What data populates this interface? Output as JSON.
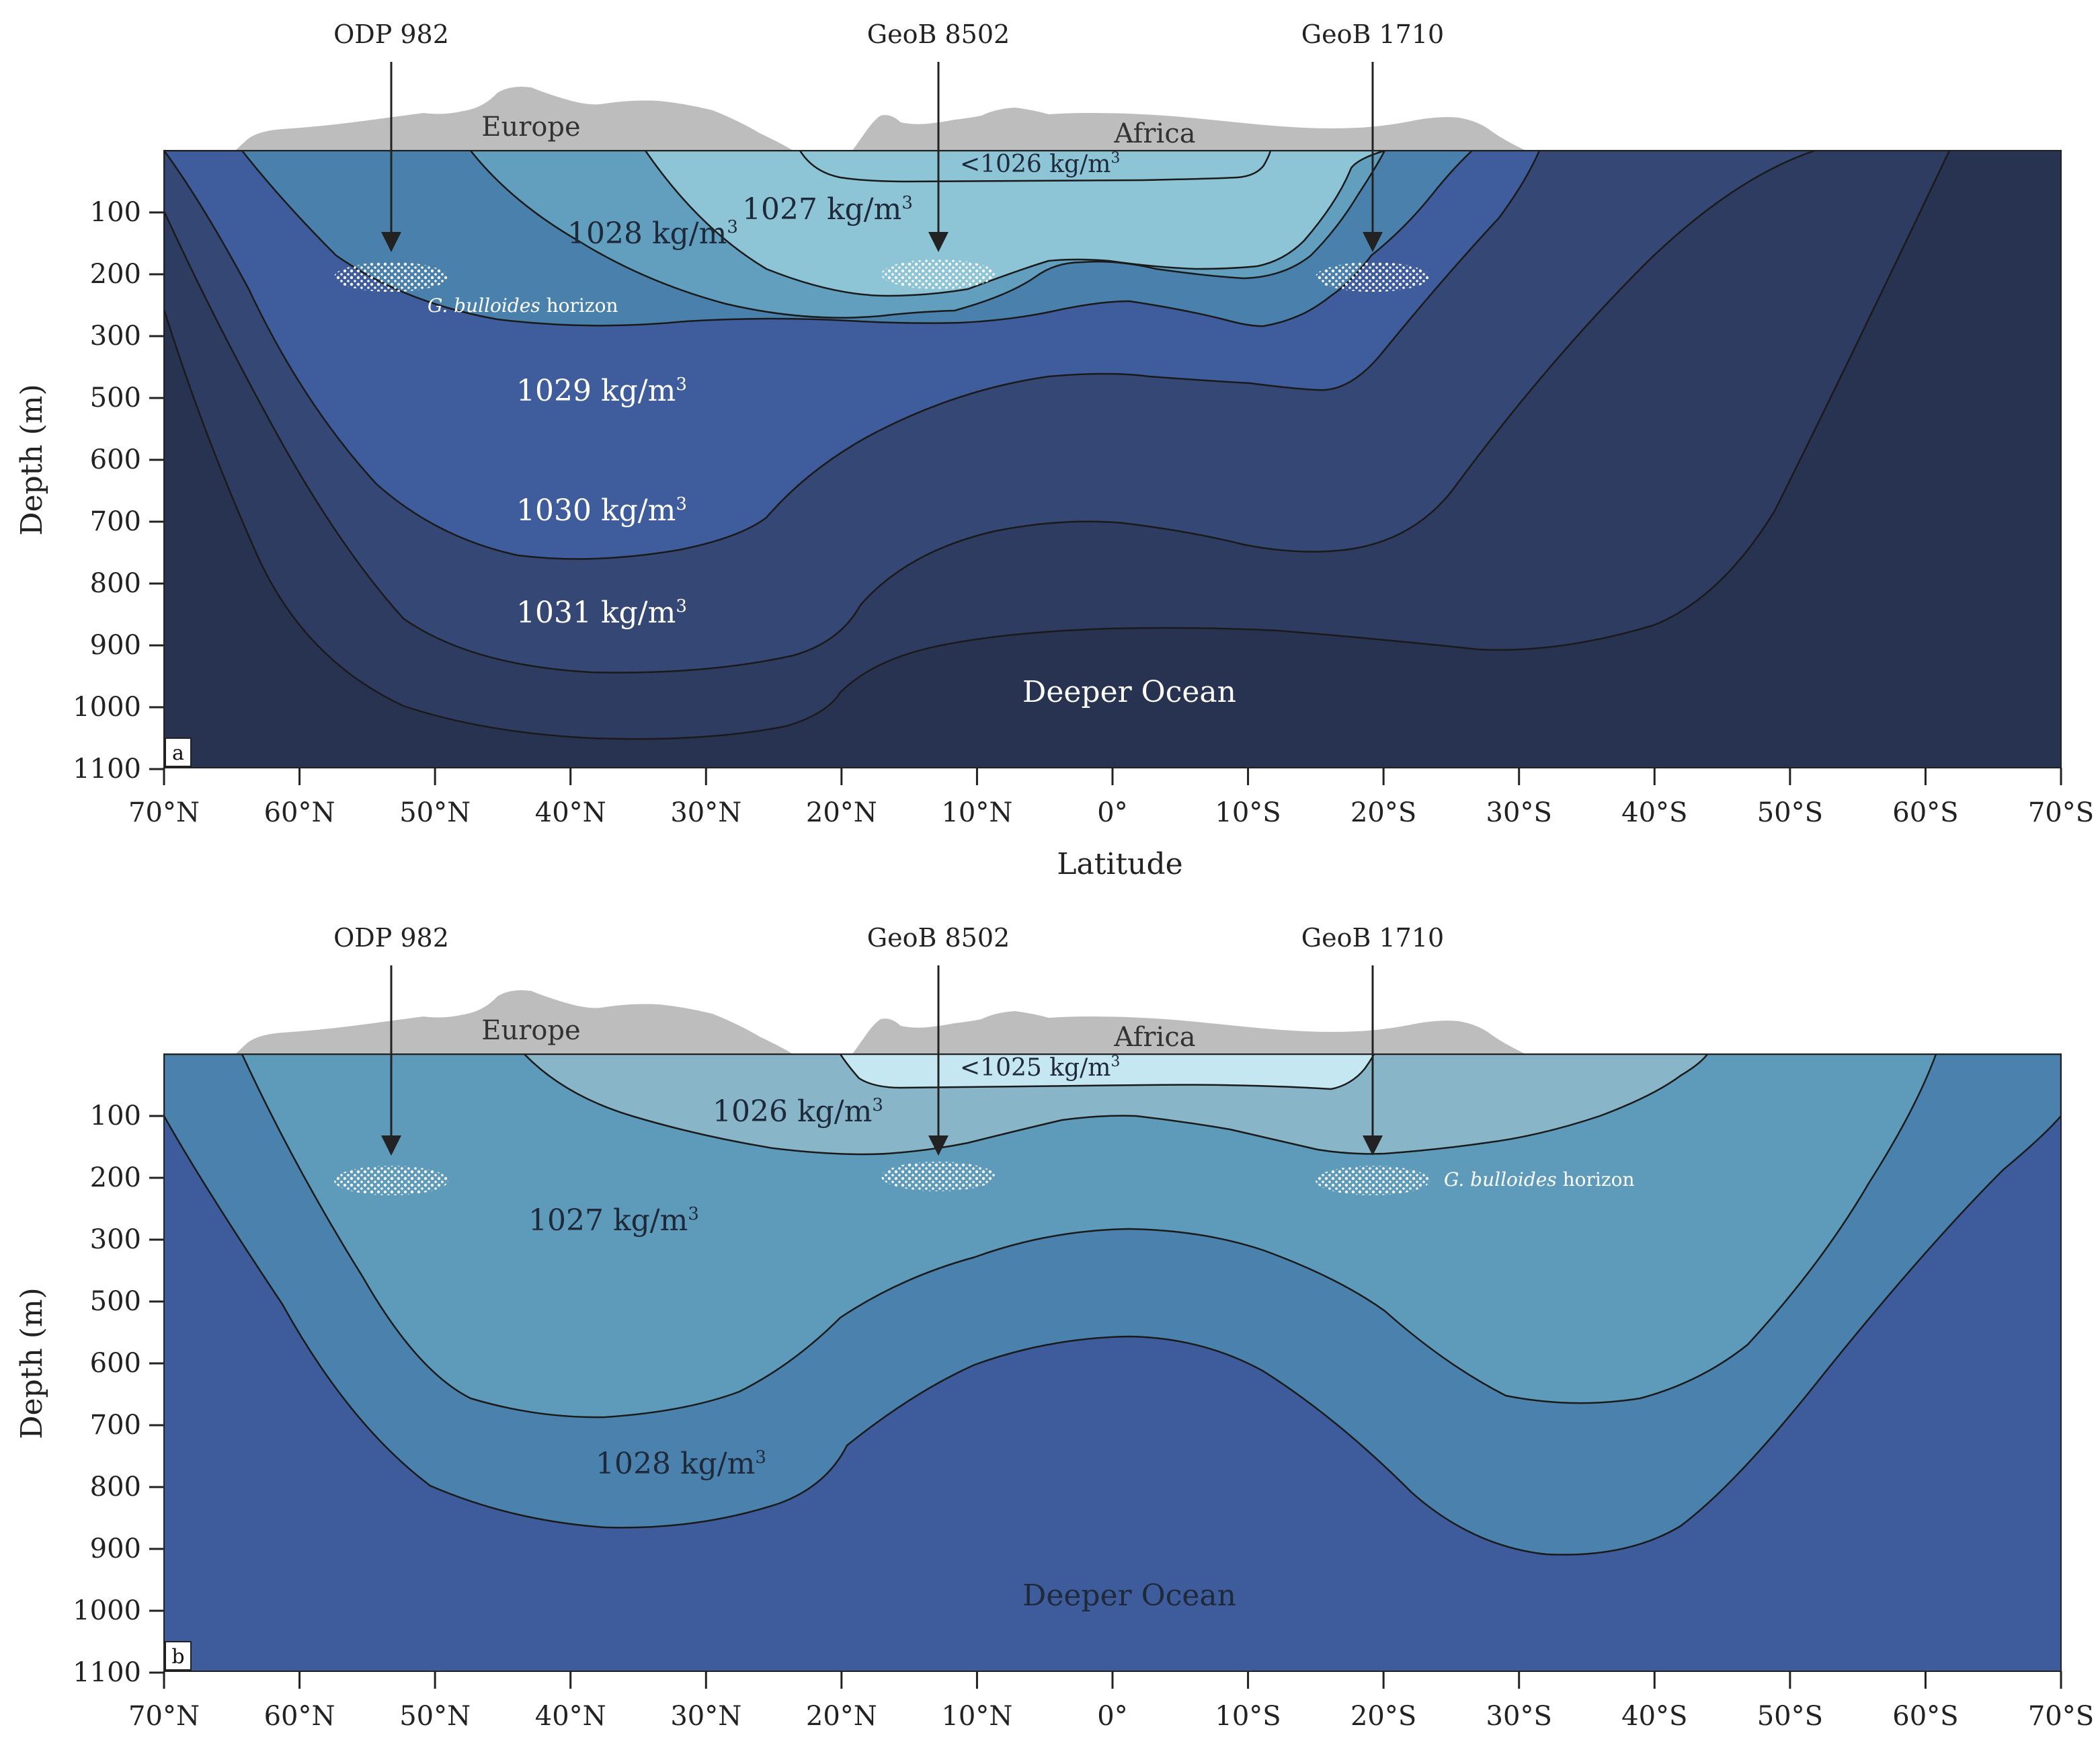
{
  "colors": {
    "land": "#bdbdbd",
    "a_lt1026": "#8ec5d6",
    "a_1027": "#629fbf",
    "a_1028": "#4a81ac",
    "a_1029": "#3f5d9c",
    "a_1030": "#354774",
    "a_1031": "#2f3c62",
    "a_deep": "#283352",
    "b_lt1025": "#c5e7f1",
    "b_1026": "#88b5c8",
    "b_1027": "#5e9bba",
    "b_1028": "#4a82ad",
    "b_deep": "#3e5c9b",
    "boundary": "#1a1a1a"
  },
  "axis": {
    "x_title": "Latitude",
    "y_title": "Depth (m)",
    "x_ticks": [
      "70°N",
      "60°N",
      "50°N",
      "40°N",
      "30°N",
      "20°N",
      "10°N",
      "0°",
      "10°S",
      "20°S",
      "30°S",
      "40°S",
      "50°S",
      "60°S",
      "70°S"
    ],
    "y_ticks": [
      "100",
      "200",
      "300",
      "500",
      "600",
      "700",
      "800",
      "900",
      "1000",
      "1100"
    ]
  },
  "cores": [
    "ODP 982",
    "GeoB 8502",
    "GeoB 1710"
  ],
  "continents": {
    "europe": "Europe",
    "africa": "Africa"
  },
  "panel_a": {
    "letter": "a",
    "d_lt1026": "<1026 kg/m",
    "d_1027": "1027 kg/m",
    "d_1028": "1028 kg/m",
    "d_1029": "1029 kg/m",
    "d_1030": "1030 kg/m",
    "d_1031": "1031 kg/m",
    "deep": "Deeper Ocean",
    "horizon_species": "G. bulloides",
    "horizon_word": " horizon",
    "sup": "3"
  },
  "panel_b": {
    "letter": "b",
    "d_lt1025": "<1025 kg/m",
    "d_1026": "1026 kg/m",
    "d_1027": "1027 kg/m",
    "d_1028": "1028 kg/m",
    "deep": "Deeper Ocean",
    "horizon_species": "G. bulloides",
    "horizon_word": " horizon",
    "sup": "3"
  }
}
